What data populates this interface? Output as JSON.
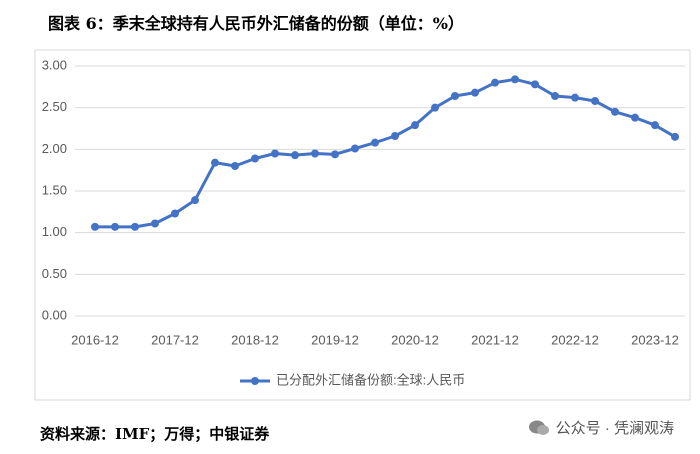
{
  "title": "图表 6：季末全球持有人民币外汇储备的份额（单位：%）",
  "chart_data": {
    "type": "line",
    "categories": [
      "2016-12",
      null,
      null,
      null,
      "2017-12",
      null,
      null,
      null,
      "2018-12",
      null,
      null,
      null,
      "2019-12",
      null,
      null,
      null,
      "2020-12",
      null,
      null,
      null,
      "2021-12",
      null,
      null,
      null,
      "2022-12",
      null,
      null,
      null,
      "2023-12",
      null
    ],
    "series": [
      {
        "name": "已分配外汇储备份额:全球:人民币",
        "color": "#4472c4",
        "values": [
          1.07,
          1.07,
          1.07,
          1.11,
          1.23,
          1.39,
          1.84,
          1.8,
          1.89,
          1.95,
          1.93,
          1.95,
          1.94,
          2.01,
          2.08,
          2.16,
          2.29,
          2.5,
          2.64,
          2.68,
          2.8,
          2.84,
          2.78,
          2.64,
          2.62,
          2.58,
          2.45,
          2.38,
          2.29,
          2.15
        ]
      }
    ],
    "ylim": [
      0,
      3
    ],
    "yticks": [
      {
        "value": 0,
        "label": "0.00"
      },
      {
        "value": 0.5,
        "label": "0.50"
      },
      {
        "value": 1,
        "label": "1.00"
      },
      {
        "value": 1.5,
        "label": "1.50"
      },
      {
        "value": 2,
        "label": "2.00"
      },
      {
        "value": 2.5,
        "label": "2.50"
      },
      {
        "value": 3,
        "label": "3.00"
      }
    ],
    "grid": true,
    "legend": "bottom"
  },
  "source": "资料来源：IMF；万得；中银证券",
  "watermark": "公众号 · 凭澜观涛"
}
